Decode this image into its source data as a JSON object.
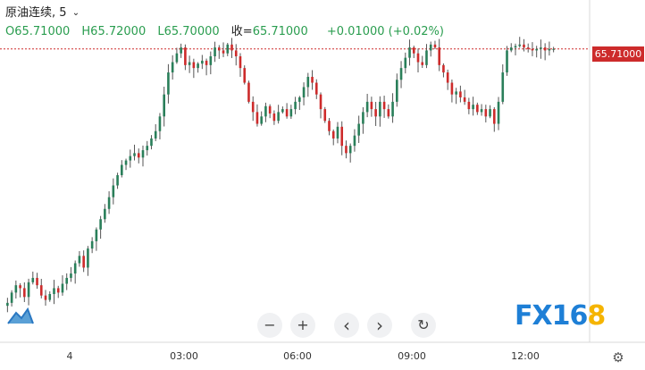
{
  "header": {
    "title": "原油连续, 5",
    "open": "O65.71000",
    "high": "H65.72000",
    "low": "L65.70000",
    "close_label": "收=",
    "close_value": "65.71000",
    "change": "+0.01000 (+0.02%)"
  },
  "price_label": "65.71000",
  "x_axis": {
    "labels": [
      "4",
      "03:00",
      "06:00",
      "09:00",
      "12:00"
    ]
  },
  "controls": {
    "zoom_out": "−",
    "zoom_in": "+",
    "scroll_left": "‹",
    "scroll_right": "›",
    "reset": "↻"
  },
  "brand": {
    "text": "FX16",
    "accent": "8"
  },
  "colors": {
    "up": "#2a7f5a",
    "down": "#cd2b2b",
    "price_line": "#cd2b2b",
    "brand_blue": "#1e7fd6",
    "brand_gold": "#f5b400"
  },
  "chart_data": {
    "type": "candlestick",
    "symbol": "原油连续",
    "interval": "5",
    "x_labels": [
      "4",
      "03:00",
      "06:00",
      "09:00",
      "12:00"
    ],
    "last_price": 65.71,
    "y_range": [
      63.9,
      65.8
    ],
    "closes": [
      63.98,
      64.05,
      64.1,
      64.08,
      64.02,
      64.12,
      64.15,
      64.1,
      64.03,
      64.0,
      64.04,
      64.08,
      64.05,
      64.11,
      64.15,
      64.18,
      64.25,
      64.3,
      64.22,
      64.35,
      64.4,
      64.48,
      64.55,
      64.62,
      64.7,
      64.78,
      64.85,
      64.92,
      64.95,
      64.98,
      65.0,
      64.97,
      65.02,
      65.05,
      65.1,
      65.15,
      65.25,
      65.4,
      65.55,
      65.62,
      65.68,
      65.72,
      65.6,
      65.62,
      65.58,
      65.61,
      65.63,
      65.6,
      65.66,
      65.72,
      65.7,
      65.68,
      65.74,
      65.7,
      65.66,
      65.58,
      65.48,
      65.35,
      65.28,
      65.2,
      65.25,
      65.32,
      65.27,
      65.22,
      65.28,
      65.3,
      65.25,
      65.3,
      65.35,
      65.38,
      65.45,
      65.52,
      65.48,
      65.4,
      65.3,
      65.22,
      65.15,
      65.1,
      65.18,
      65.05,
      65.0,
      65.05,
      65.12,
      65.2,
      65.28,
      65.35,
      65.3,
      65.25,
      65.35,
      65.3,
      65.25,
      65.35,
      65.5,
      65.58,
      65.65,
      65.72,
      65.68,
      65.62,
      65.6,
      65.7,
      65.74,
      65.72,
      65.6,
      65.55,
      65.48,
      65.4,
      65.42,
      65.38,
      65.35,
      65.3,
      65.33,
      65.28,
      65.3,
      65.25,
      65.3,
      65.2,
      65.35,
      65.55,
      65.7,
      65.72,
      65.73,
      65.74,
      65.72,
      65.71,
      65.7,
      65.71,
      65.72,
      65.7,
      65.71,
      65.71
    ]
  }
}
